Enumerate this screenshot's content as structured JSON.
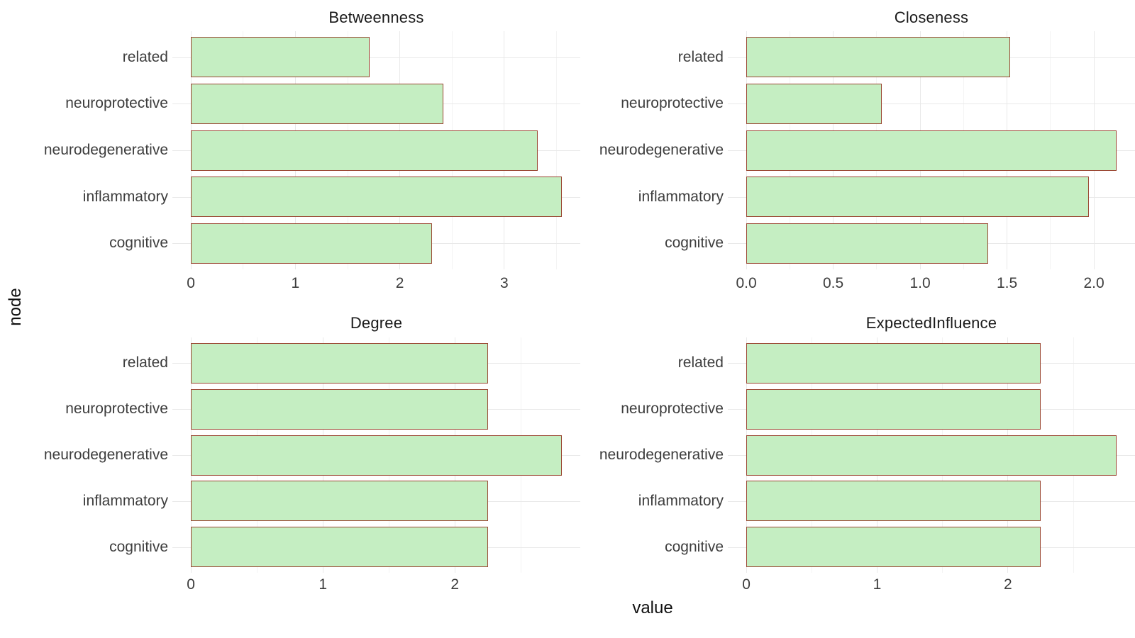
{
  "figure": {
    "y_axis_title": "node",
    "x_axis_title": "value"
  },
  "colors": {
    "bar_fill": "#c5eec2",
    "bar_border": "#9a4732",
    "grid_major": "#e9e9e9",
    "grid_minor": "#f4f4f4",
    "label_text": "#3d3d3d",
    "title_text": "#1a1a1a",
    "background": "#ffffff"
  },
  "categories_top_to_bottom": [
    "related",
    "neuroprotective",
    "neurodegenerative",
    "inflammatory",
    "cognitive"
  ],
  "chart_data": [
    {
      "type": "bar",
      "orientation": "horizontal",
      "title": "Betweenness",
      "categories": [
        "related",
        "neuroprotective",
        "neurodegenerative",
        "inflammatory",
        "cognitive"
      ],
      "values": [
        1.71,
        2.42,
        3.32,
        3.55,
        2.31
      ],
      "xlabel": "value",
      "ylabel": "node",
      "xlim": [
        -0.1775,
        3.7275
      ],
      "x_tick_labels": [
        "0",
        "1",
        "2",
        "3"
      ],
      "x_tick_values": [
        0,
        1,
        2,
        3
      ],
      "x_minor_values": [
        0.5,
        1.5,
        2.5,
        3.5
      ],
      "grid": true,
      "legend": "none"
    },
    {
      "type": "bar",
      "orientation": "horizontal",
      "title": "Closeness",
      "categories": [
        "related",
        "neuroprotective",
        "neurodegenerative",
        "inflammatory",
        "cognitive"
      ],
      "values": [
        1.52,
        0.78,
        2.13,
        1.97,
        1.39
      ],
      "xlabel": "value",
      "ylabel": "node",
      "xlim": [
        -0.1065,
        2.2365
      ],
      "x_tick_labels": [
        "0.0",
        "0.5",
        "1.0",
        "1.5",
        "2.0"
      ],
      "x_tick_values": [
        0,
        0.5,
        1,
        1.5,
        2
      ],
      "x_minor_values": [
        0.25,
        0.75,
        1.25,
        1.75
      ],
      "grid": true,
      "legend": "none"
    },
    {
      "type": "bar",
      "orientation": "horizontal",
      "title": "Degree",
      "categories": [
        "related",
        "neuroprotective",
        "neurodegenerative",
        "inflammatory",
        "cognitive"
      ],
      "values": [
        2.25,
        2.25,
        2.81,
        2.25,
        2.25
      ],
      "xlabel": "value",
      "ylabel": "node",
      "xlim": [
        -0.1405,
        2.9505
      ],
      "x_tick_labels": [
        "0",
        "1",
        "2"
      ],
      "x_tick_values": [
        0,
        1,
        2
      ],
      "x_minor_values": [
        0.5,
        1.5,
        2.5
      ],
      "grid": true,
      "legend": "none"
    },
    {
      "type": "bar",
      "orientation": "horizontal",
      "title": "ExpectedInfluence",
      "categories": [
        "related",
        "neuroprotective",
        "neurodegenerative",
        "inflammatory",
        "cognitive"
      ],
      "values": [
        2.25,
        2.25,
        2.83,
        2.25,
        2.25
      ],
      "xlabel": "value",
      "ylabel": "node",
      "xlim": [
        -0.1415,
        2.9715
      ],
      "x_tick_labels": [
        "0",
        "1",
        "2"
      ],
      "x_tick_values": [
        0,
        1,
        2
      ],
      "x_minor_values": [
        0.5,
        1.5,
        2.5
      ],
      "grid": true,
      "legend": "none"
    }
  ]
}
